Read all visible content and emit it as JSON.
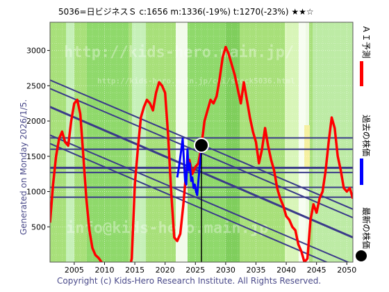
{
  "header": {
    "title": "5036=日ビジネスＳ     c:1656   m:1336(-19%)   t:1270(-23%)   ★★☆"
  },
  "side_label": "Generated on Monday 2026/1/5.",
  "footer": "Copyright (c) Kids-Hero Research Institute. All Rights Reserved.",
  "watermarks": {
    "top": "http://kids-hero.main.jp/",
    "sub": "http://kids-hero.main.jp/cgi/stock5036.html",
    "bottom": "info@kids-hero.main.jp"
  },
  "legend": [
    {
      "label": "ＡＩ予測",
      "color": "#ff0000"
    },
    {
      "label": "過去の株価",
      "color": "#0000ff"
    },
    {
      "label": "最新の株価",
      "color": "#000000"
    }
  ],
  "colors": {
    "background_green": "#a8e07a",
    "ai_line": "#ff0000",
    "price_line": "#0000ff",
    "channel_line": "#3a3a8a",
    "current_marker": "#000000"
  },
  "chart_data": {
    "type": "line",
    "xlim": [
      2001,
      2051
    ],
    "ylim": [
      0,
      3400
    ],
    "x_ticks": [
      2005,
      2010,
      2015,
      2020,
      2025,
      2030,
      2035,
      2040,
      2045,
      2050
    ],
    "y_ticks": [
      500,
      1000,
      1500,
      2000,
      2500,
      3000
    ],
    "grid": true,
    "current": {
      "x": 2026.0,
      "y": 1656
    },
    "horizontal_levels": [
      1760,
      1600,
      1336,
      1270,
      1060,
      920
    ],
    "trend_lines": [
      {
        "x1": 2001,
        "y1": 2580,
        "x2": 2051,
        "y2": 750
      },
      {
        "x1": 2001,
        "y1": 2460,
        "x2": 2051,
        "y2": 630
      },
      {
        "x1": 2001,
        "y1": 2200,
        "x2": 2051,
        "y2": 350
      },
      {
        "x1": 2001,
        "y1": 1800,
        "x2": 2051,
        "y2": -30
      },
      {
        "x1": 2001,
        "y1": 1680,
        "x2": 2051,
        "y2": -160
      }
    ],
    "series": [
      {
        "name": "ＡＩ予測",
        "x": [
          2001,
          2001.5,
          2002,
          2002.5,
          2003,
          2003.5,
          2004,
          2004.5,
          2005,
          2005.5,
          2006,
          2006.5,
          2007,
          2007.5,
          2008,
          2008.5,
          2009,
          2009.5,
          2010,
          2012,
          2014,
          2014.5,
          2015,
          2015.5,
          2016,
          2016.5,
          2017,
          2017.5,
          2018,
          2018.5,
          2019,
          2019.5,
          2020,
          2020.5,
          2021,
          2021.5,
          2022,
          2022.5,
          2023,
          2023.5,
          2024,
          2024.5,
          2025,
          2025.5,
          2026,
          2026.5,
          2027,
          2027.5,
          2028,
          2028.5,
          2029,
          2029.5,
          2030,
          2030.5,
          2031,
          2031.5,
          2032,
          2032.5,
          2033,
          2033.5,
          2034,
          2034.5,
          2035,
          2035.5,
          2036,
          2036.5,
          2037,
          2037.5,
          2038,
          2038.5,
          2039,
          2039.5,
          2040,
          2040.5,
          2041,
          2041.5,
          2042,
          2042.5,
          2043,
          2043.5,
          2044,
          2044.5,
          2045,
          2045.5,
          2046,
          2046.5,
          2047,
          2047.5,
          2048,
          2048.5,
          2049,
          2049.5,
          2050,
          2050.5,
          2051
        ],
        "values": [
          560,
          1100,
          1500,
          1750,
          1850,
          1700,
          1650,
          2000,
          2250,
          2300,
          2100,
          1500,
          900,
          450,
          200,
          100,
          60,
          0,
          -100,
          -200,
          -150,
          50,
          1100,
          1600,
          2050,
          2200,
          2300,
          2250,
          2150,
          2400,
          2550,
          2500,
          2400,
          1800,
          1000,
          350,
          300,
          400,
          800,
          1300,
          1450,
          1250,
          1350,
          1400,
          1650,
          2000,
          2150,
          2300,
          2250,
          2350,
          2600,
          2900,
          3050,
          2950,
          2800,
          2650,
          2450,
          2250,
          2550,
          2300,
          2050,
          1850,
          1700,
          1400,
          1600,
          1900,
          1650,
          1450,
          1300,
          1050,
          900,
          800,
          650,
          600,
          500,
          450,
          250,
          150,
          0,
          50,
          600,
          820,
          700,
          900,
          1000,
          1300,
          1700,
          2050,
          1900,
          1500,
          1300,
          1050,
          1000,
          1050,
          900
        ]
      },
      {
        "name": "過去の株価",
        "x": [
          2022,
          2022.3,
          2022.6,
          2022.9,
          2023.1,
          2023.3,
          2023.5,
          2023.7,
          2023.9,
          2024.1,
          2024.3,
          2024.5,
          2024.7,
          2024.9,
          2025.1,
          2025.3,
          2025.5,
          2025.7,
          2025.9,
          2026.0
        ],
        "values": [
          1200,
          1350,
          1550,
          1750,
          1450,
          1150,
          1100,
          1600,
          1300,
          1400,
          1150,
          1200,
          1050,
          1100,
          1000,
          950,
          1150,
          1350,
          1500,
          1656
        ]
      }
    ]
  }
}
